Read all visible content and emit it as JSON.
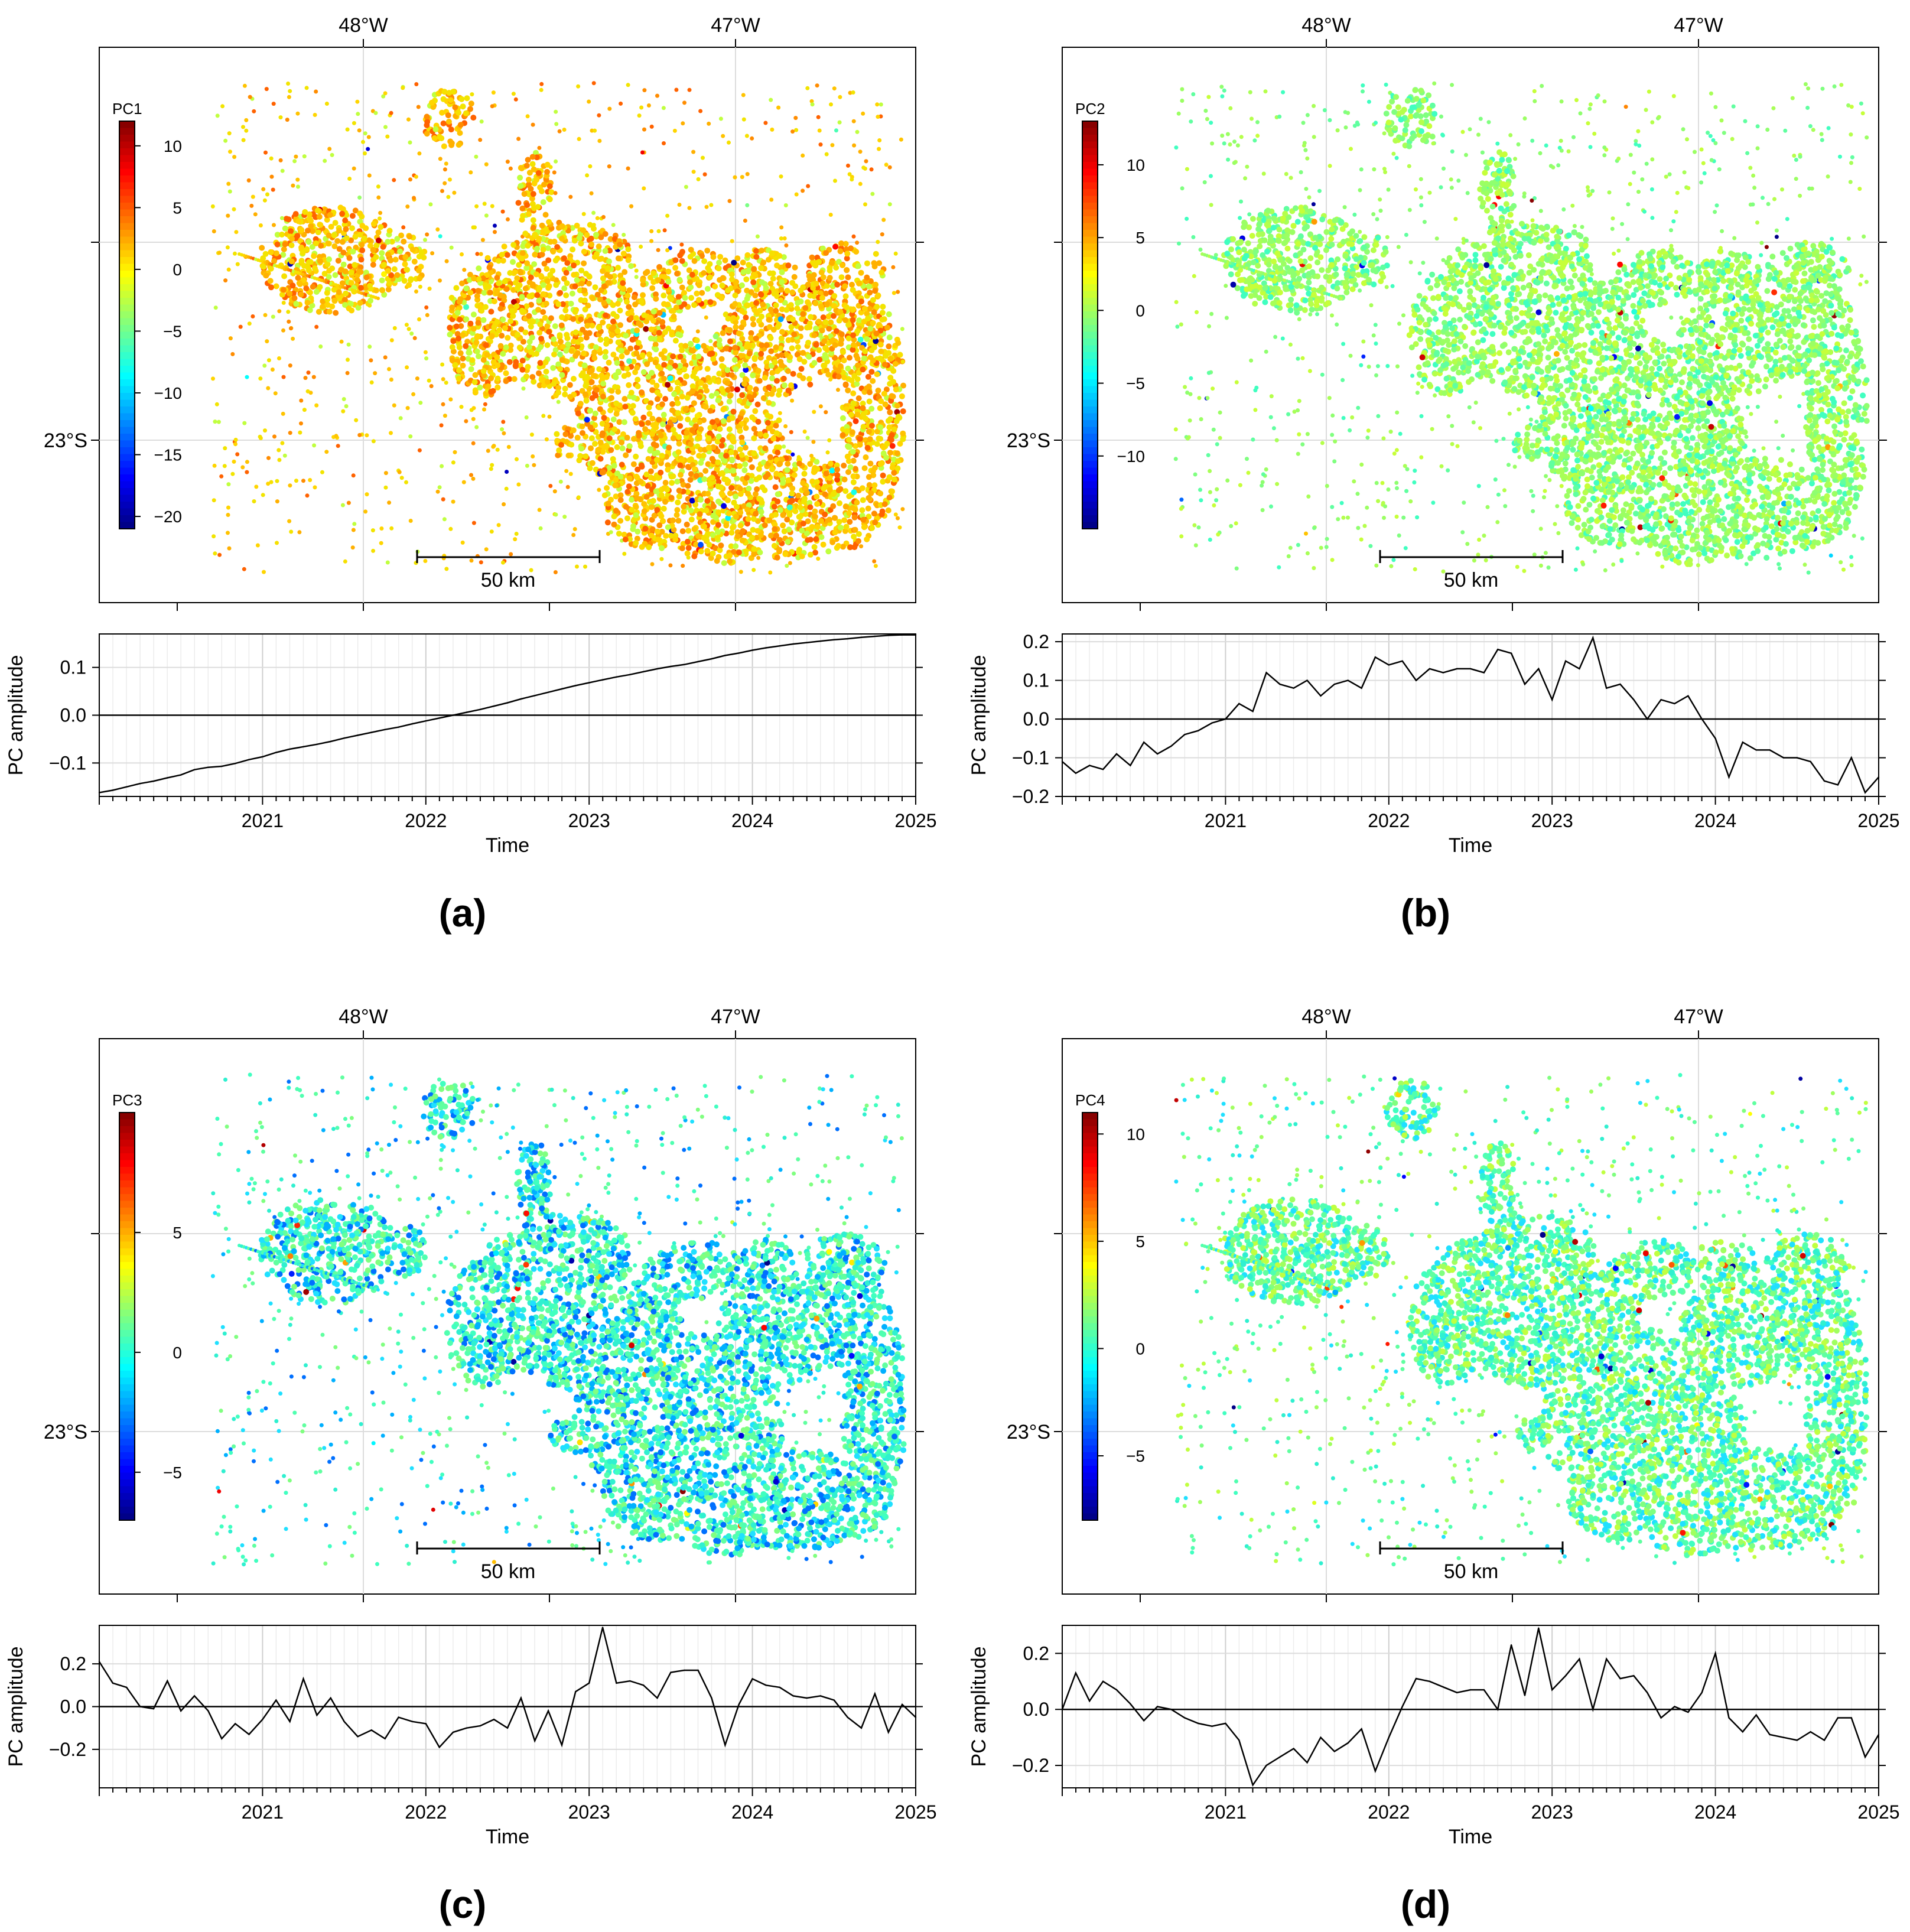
{
  "figure": {
    "panels": [
      {
        "caption": "(a)",
        "map": {
          "colorbar_title": "PC1",
          "colorbar_ticks": [
            "10",
            "5",
            "0",
            "−5",
            "−10",
            "−15",
            "−20"
          ],
          "colorbar_range": [
            -21,
            12
          ],
          "point_colors": [
            "#f2e400",
            "#f6e000",
            "#ffd500",
            "#ffc300",
            "#ffb000",
            "#ff8c00",
            "#ff6200",
            "#c0ff3f"
          ],
          "lon_labels": [
            "48°W",
            "47°W"
          ],
          "lat_label": "23°S",
          "scalebar_label": "50 km"
        },
        "series": {
          "xlabel": "Time",
          "ylabel": "PC amplitude",
          "yticks": [
            "0.1",
            "0.0",
            "−0.1"
          ],
          "xticks": [
            "2021",
            "2022",
            "2023",
            "2024",
            "2025"
          ]
        }
      },
      {
        "caption": "(b)",
        "map": {
          "colorbar_title": "PC2",
          "colorbar_ticks": [
            "10",
            "5",
            "0",
            "−5",
            "−10"
          ],
          "colorbar_range": [
            -15,
            13
          ],
          "point_colors": [
            "#a8ff57",
            "#9bff63",
            "#8fff6f",
            "#b5ff4b",
            "#80ff80",
            "#60ffa0",
            "#40ffc0",
            "#c6ff39"
          ],
          "lon_labels": [
            "48°W",
            "47°W"
          ],
          "lat_label": "23°S",
          "scalebar_label": "50 km"
        },
        "series": {
          "xlabel": "Time",
          "ylabel": "PC amplitude",
          "yticks": [
            "0.2",
            "0.1",
            "0.0",
            "−0.1",
            "−0.2"
          ],
          "xticks": [
            "2021",
            "2022",
            "2023",
            "2024",
            "2025"
          ]
        }
      },
      {
        "caption": "(c)",
        "map": {
          "colorbar_title": "PC3",
          "colorbar_ticks": [
            "5",
            "0",
            "−5"
          ],
          "colorbar_range": [
            -7,
            10
          ],
          "point_colors": [
            "#40ffc0",
            "#30f0d0",
            "#50ffb0",
            "#20e0ff",
            "#60ffa0",
            "#00b0ff",
            "#80ff80",
            "#0070ff"
          ],
          "lon_labels": [
            "48°W",
            "47°W"
          ],
          "lat_label": "23°S",
          "scalebar_label": "50 km"
        },
        "series": {
          "xlabel": "Time",
          "ylabel": "PC amplitude",
          "yticks": [
            "0.2",
            "0.0",
            "−0.2"
          ],
          "xticks": [
            "2021",
            "2022",
            "2023",
            "2024",
            "2025"
          ]
        }
      },
      {
        "caption": "(d)",
        "map": {
          "colorbar_title": "PC4",
          "colorbar_ticks": [
            "10",
            "5",
            "0",
            "−5"
          ],
          "colorbar_range": [
            -8,
            11
          ],
          "point_colors": [
            "#50ffb0",
            "#60ffa0",
            "#40ffc0",
            "#80ff80",
            "#30f0d0",
            "#a0ff60",
            "#20e0ff",
            "#c0ff40"
          ],
          "lon_labels": [
            "48°W",
            "47°W"
          ],
          "lat_label": "23°S",
          "scalebar_label": "50 km"
        },
        "series": {
          "xlabel": "Time",
          "ylabel": "PC amplitude",
          "yticks": [
            "0.2",
            "0.0",
            "−0.2"
          ],
          "xticks": [
            "2021",
            "2022",
            "2023",
            "2024",
            "2025"
          ]
        }
      }
    ]
  },
  "chart_data": [
    {
      "type": "line",
      "xlabel": "Time",
      "ylabel": "PC amplitude",
      "xlim": [
        2020.0,
        2025.0
      ],
      "ylim": [
        -0.17,
        0.17
      ],
      "x": [
        2020.0,
        2020.083,
        2020.167,
        2020.25,
        2020.333,
        2020.417,
        2020.5,
        2020.583,
        2020.667,
        2020.75,
        2020.833,
        2020.917,
        2021.0,
        2021.083,
        2021.167,
        2021.25,
        2021.333,
        2021.417,
        2021.5,
        2021.583,
        2021.667,
        2021.75,
        2021.833,
        2021.917,
        2022.0,
        2022.083,
        2022.167,
        2022.25,
        2022.333,
        2022.417,
        2022.5,
        2022.583,
        2022.667,
        2022.75,
        2022.833,
        2022.917,
        2023.0,
        2023.083,
        2023.167,
        2023.25,
        2023.333,
        2023.417,
        2023.5,
        2023.583,
        2023.667,
        2023.75,
        2023.833,
        2023.917,
        2024.0,
        2024.083,
        2024.167,
        2024.25,
        2024.333,
        2024.417,
        2024.5,
        2024.583,
        2024.667,
        2024.75,
        2024.833,
        2024.917,
        2025.0
      ],
      "series": [
        {
          "values": [
            -0.162,
            -0.157,
            -0.15,
            -0.143,
            -0.138,
            -0.131,
            -0.125,
            -0.114,
            -0.109,
            -0.107,
            -0.101,
            -0.093,
            -0.087,
            -0.078,
            -0.071,
            -0.066,
            -0.061,
            -0.055,
            -0.048,
            -0.042,
            -0.036,
            -0.03,
            -0.025,
            -0.018,
            -0.012,
            -0.006,
            0.0,
            0.006,
            0.012,
            0.019,
            0.026,
            0.034,
            0.041,
            0.048,
            0.055,
            0.062,
            0.068,
            0.074,
            0.08,
            0.085,
            0.091,
            0.097,
            0.102,
            0.106,
            0.112,
            0.118,
            0.125,
            0.13,
            0.136,
            0.141,
            0.145,
            0.149,
            0.152,
            0.155,
            0.158,
            0.16,
            0.163,
            0.165,
            0.167,
            0.168,
            0.168
          ]
        }
      ]
    },
    {
      "type": "line",
      "xlabel": "Time",
      "ylabel": "PC amplitude",
      "xlim": [
        2020.0,
        2025.0
      ],
      "ylim": [
        -0.2,
        0.22
      ],
      "x": [
        2020.0,
        2020.083,
        2020.167,
        2020.25,
        2020.333,
        2020.417,
        2020.5,
        2020.583,
        2020.667,
        2020.75,
        2020.833,
        2020.917,
        2021.0,
        2021.083,
        2021.167,
        2021.25,
        2021.333,
        2021.417,
        2021.5,
        2021.583,
        2021.667,
        2021.75,
        2021.833,
        2021.917,
        2022.0,
        2022.083,
        2022.167,
        2022.25,
        2022.333,
        2022.417,
        2022.5,
        2022.583,
        2022.667,
        2022.75,
        2022.833,
        2022.917,
        2023.0,
        2023.083,
        2023.167,
        2023.25,
        2023.333,
        2023.417,
        2023.5,
        2023.583,
        2023.667,
        2023.75,
        2023.833,
        2023.917,
        2024.0,
        2024.083,
        2024.167,
        2024.25,
        2024.333,
        2024.417,
        2024.5,
        2024.583,
        2024.667,
        2024.75,
        2024.833,
        2024.917,
        2025.0
      ],
      "series": [
        {
          "values": [
            -0.11,
            -0.14,
            -0.12,
            -0.13,
            -0.09,
            -0.12,
            -0.06,
            -0.09,
            -0.07,
            -0.04,
            -0.03,
            -0.01,
            0.0,
            0.04,
            0.02,
            0.12,
            0.09,
            0.08,
            0.1,
            0.06,
            0.09,
            0.1,
            0.08,
            0.16,
            0.14,
            0.15,
            0.1,
            0.13,
            0.12,
            0.13,
            0.13,
            0.12,
            0.18,
            0.17,
            0.09,
            0.13,
            0.05,
            0.15,
            0.13,
            0.21,
            0.08,
            0.09,
            0.05,
            0.0,
            0.05,
            0.04,
            0.06,
            0.0,
            -0.05,
            -0.15,
            -0.06,
            -0.08,
            -0.08,
            -0.1,
            -0.1,
            -0.11,
            -0.16,
            -0.17,
            -0.1,
            -0.19,
            -0.15
          ]
        }
      ]
    },
    {
      "type": "line",
      "xlabel": "Time",
      "ylabel": "PC amplitude",
      "xlim": [
        2020.0,
        2025.0
      ],
      "ylim": [
        -0.38,
        0.38
      ],
      "x": [
        2020.0,
        2020.083,
        2020.167,
        2020.25,
        2020.333,
        2020.417,
        2020.5,
        2020.583,
        2020.667,
        2020.75,
        2020.833,
        2020.917,
        2021.0,
        2021.083,
        2021.167,
        2021.25,
        2021.333,
        2021.417,
        2021.5,
        2021.583,
        2021.667,
        2021.75,
        2021.833,
        2021.917,
        2022.0,
        2022.083,
        2022.167,
        2022.25,
        2022.333,
        2022.417,
        2022.5,
        2022.583,
        2022.667,
        2022.75,
        2022.833,
        2022.917,
        2023.0,
        2023.083,
        2023.167,
        2023.25,
        2023.333,
        2023.417,
        2023.5,
        2023.583,
        2023.667,
        2023.75,
        2023.833,
        2023.917,
        2024.0,
        2024.083,
        2024.167,
        2024.25,
        2024.333,
        2024.417,
        2024.5,
        2024.583,
        2024.667,
        2024.75,
        2024.833,
        2024.917,
        2025.0
      ],
      "series": [
        {
          "values": [
            0.21,
            0.11,
            0.09,
            0.0,
            -0.01,
            0.12,
            -0.02,
            0.05,
            -0.02,
            -0.15,
            -0.08,
            -0.13,
            -0.06,
            0.03,
            -0.07,
            0.13,
            -0.04,
            0.04,
            -0.07,
            -0.14,
            -0.11,
            -0.15,
            -0.05,
            -0.07,
            -0.08,
            -0.19,
            -0.12,
            -0.1,
            -0.09,
            -0.06,
            -0.1,
            0.04,
            -0.16,
            -0.02,
            -0.18,
            0.07,
            0.11,
            0.37,
            0.11,
            0.12,
            0.1,
            0.04,
            0.16,
            0.17,
            0.17,
            0.04,
            -0.18,
            0.01,
            0.13,
            0.1,
            0.09,
            0.05,
            0.04,
            0.05,
            0.03,
            -0.05,
            -0.1,
            0.06,
            -0.12,
            0.01,
            -0.05
          ]
        }
      ]
    },
    {
      "type": "line",
      "xlabel": "Time",
      "ylabel": "PC amplitude",
      "xlim": [
        2020.0,
        2025.0
      ],
      "ylim": [
        -0.28,
        0.3
      ],
      "x": [
        2020.0,
        2020.083,
        2020.167,
        2020.25,
        2020.333,
        2020.417,
        2020.5,
        2020.583,
        2020.667,
        2020.75,
        2020.833,
        2020.917,
        2021.0,
        2021.083,
        2021.167,
        2021.25,
        2021.333,
        2021.417,
        2021.5,
        2021.583,
        2021.667,
        2021.75,
        2021.833,
        2021.917,
        2022.0,
        2022.083,
        2022.167,
        2022.25,
        2022.333,
        2022.417,
        2022.5,
        2022.583,
        2022.667,
        2022.75,
        2022.833,
        2022.917,
        2023.0,
        2023.083,
        2023.167,
        2023.25,
        2023.333,
        2023.417,
        2023.5,
        2023.583,
        2023.667,
        2023.75,
        2023.833,
        2023.917,
        2024.0,
        2024.083,
        2024.167,
        2024.25,
        2024.333,
        2024.417,
        2024.5,
        2024.583,
        2024.667,
        2024.75,
        2024.833,
        2024.917,
        2025.0
      ],
      "series": [
        {
          "values": [
            0.0,
            0.13,
            0.03,
            0.1,
            0.07,
            0.02,
            -0.04,
            0.01,
            0.0,
            -0.03,
            -0.05,
            -0.06,
            -0.05,
            -0.11,
            -0.27,
            -0.2,
            -0.17,
            -0.14,
            -0.19,
            -0.1,
            -0.15,
            -0.12,
            -0.07,
            -0.22,
            -0.1,
            0.01,
            0.11,
            0.1,
            0.08,
            0.06,
            0.07,
            0.07,
            0.0,
            0.23,
            0.05,
            0.29,
            0.07,
            0.12,
            0.18,
            0.0,
            0.18,
            0.11,
            0.12,
            0.06,
            -0.03,
            0.01,
            -0.01,
            0.06,
            0.2,
            -0.03,
            -0.08,
            -0.02,
            -0.09,
            -0.1,
            -0.11,
            -0.08,
            -0.11,
            -0.03,
            -0.03,
            -0.17,
            -0.09
          ]
        }
      ]
    }
  ]
}
